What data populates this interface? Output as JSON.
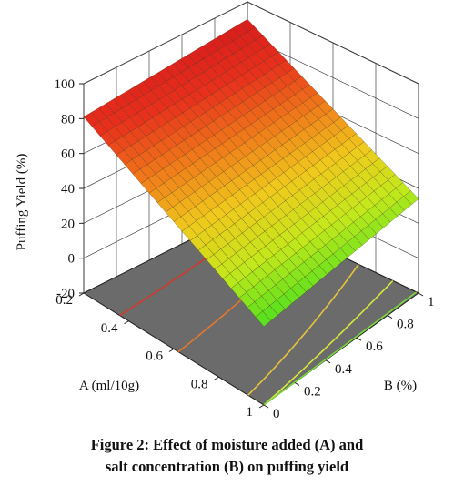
{
  "chart_data": {
    "type": "surface3d",
    "zlabel": "Puffing Yield (%)",
    "xlabel": "A (ml/10g)",
    "ylabel": "B (%)",
    "x_ticks": [
      "0.2",
      "0.4",
      "0.6",
      "0.8",
      "1"
    ],
    "y_ticks": [
      "0",
      "0.2",
      "0.4",
      "0.6",
      "0.8",
      "1"
    ],
    "z_ticks": [
      "-20",
      "0",
      "20",
      "40",
      "60",
      "80",
      "100"
    ],
    "x_range": [
      0.2,
      1.0
    ],
    "y_range": [
      0,
      1.0
    ],
    "z_range": [
      -20,
      100
    ],
    "grid": true,
    "surface_corners": [
      {
        "A": 0.2,
        "B": 0,
        "yield": 81
      },
      {
        "A": 0.2,
        "B": 1.0,
        "yield": 90
      },
      {
        "A": 1.0,
        "B": 0,
        "yield": 25
      },
      {
        "A": 1.0,
        "B": 1.0,
        "yield": 34
      }
    ],
    "contour_lines": [
      {
        "A_at_B0": 0.36,
        "A_at_B1": 0.27,
        "color": "#d13a2a"
      },
      {
        "A_at_B0": 0.62,
        "A_at_B1": 0.48,
        "color": "#e6772c"
      },
      {
        "A_at_B0": 0.93,
        "A_at_B1": 0.72,
        "color": "#e8c43a"
      },
      {
        "A_at_B0": 1.0,
        "A_at_B1": 0.88,
        "color": "#d8e83a"
      },
      {
        "A_at_B0": 1.0,
        "A_at_B1": 0.99,
        "color": "#7ad83a"
      }
    ],
    "colormap": [
      "#4fe01e",
      "#c4e81c",
      "#f0c91c",
      "#f07a1a",
      "#e8301c",
      "#d81c1c"
    ]
  },
  "caption": {
    "line1": "Figure 2: Effect of moisture added (A) and",
    "line2": "salt concentration (B) on puffing yield"
  }
}
